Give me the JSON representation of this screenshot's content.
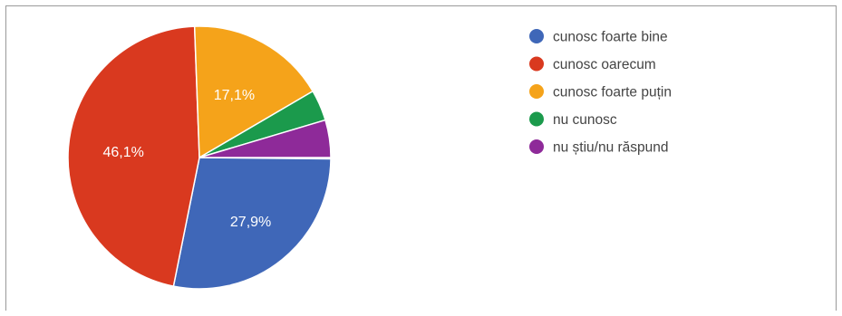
{
  "chart_data": {
    "type": "pie",
    "categories": [
      "cunosc foarte bine",
      "cunosc oarecum",
      "cunosc foarte puțin",
      "nu cunosc",
      "nu știu/nu răspund"
    ],
    "values": [
      27.9,
      46.1,
      17.1,
      3.8,
      4.6
    ],
    "slice_labels": [
      "27,9%",
      "46,1%",
      "17,1%",
      "",
      ""
    ],
    "colors": [
      "#3f67b8",
      "#d9391f",
      "#f5a31a",
      "#1b9a4c",
      "#8e2a99"
    ],
    "legend_position": "right"
  }
}
